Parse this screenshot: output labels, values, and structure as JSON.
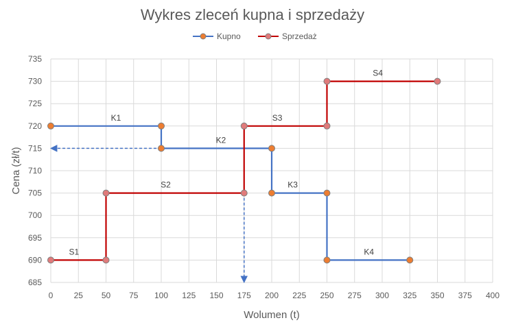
{
  "chart_data": {
    "type": "line",
    "title": "Wykres zleceń kupna i sprzedaży",
    "xlabel": "Wolumen (t)",
    "ylabel": "Cena (zł/t)",
    "xlim": [
      0,
      400
    ],
    "ylim": [
      685,
      735
    ],
    "x_ticks": [
      0,
      25,
      50,
      75,
      100,
      125,
      150,
      175,
      200,
      225,
      250,
      275,
      300,
      325,
      350,
      375,
      400
    ],
    "y_ticks": [
      685,
      690,
      695,
      700,
      705,
      710,
      715,
      720,
      725,
      730,
      735
    ],
    "grid": true,
    "legend_position": "top-center",
    "series": [
      {
        "name": "Kupno",
        "color": "#4472C4",
        "marker_color": "#ED7D31",
        "points": [
          [
            0,
            720
          ],
          [
            100,
            720
          ],
          [
            100,
            715
          ],
          [
            200,
            715
          ],
          [
            200,
            705
          ],
          [
            250,
            705
          ],
          [
            250,
            690
          ],
          [
            325,
            690
          ]
        ],
        "segment_labels": [
          {
            "text": "K1",
            "x": 59,
            "y": 720
          },
          {
            "text": "K2",
            "x": 154,
            "y": 715
          },
          {
            "text": "K3",
            "x": 219,
            "y": 705
          },
          {
            "text": "K4",
            "x": 288,
            "y": 690
          }
        ]
      },
      {
        "name": "Sprzedaż",
        "color": "#C00000",
        "marker_color": "#E07B7B",
        "points": [
          [
            0,
            690
          ],
          [
            50,
            690
          ],
          [
            50,
            705
          ],
          [
            175,
            705
          ],
          [
            175,
            720
          ],
          [
            250,
            720
          ],
          [
            250,
            730
          ],
          [
            350,
            730
          ]
        ],
        "segment_labels": [
          {
            "text": "S1",
            "x": 21,
            "y": 690
          },
          {
            "text": "S2",
            "x": 104,
            "y": 705
          },
          {
            "text": "S3",
            "x": 205,
            "y": 720
          },
          {
            "text": "S4",
            "x": 296,
            "y": 730
          }
        ]
      }
    ],
    "annotations": [
      {
        "type": "dashed-arrow",
        "color": "#4472C4",
        "from": [
          100,
          715
        ],
        "to": [
          0,
          715
        ]
      },
      {
        "type": "dashed-arrow",
        "color": "#4472C4",
        "from": [
          175,
          705
        ],
        "to": [
          175,
          685
        ]
      }
    ]
  }
}
